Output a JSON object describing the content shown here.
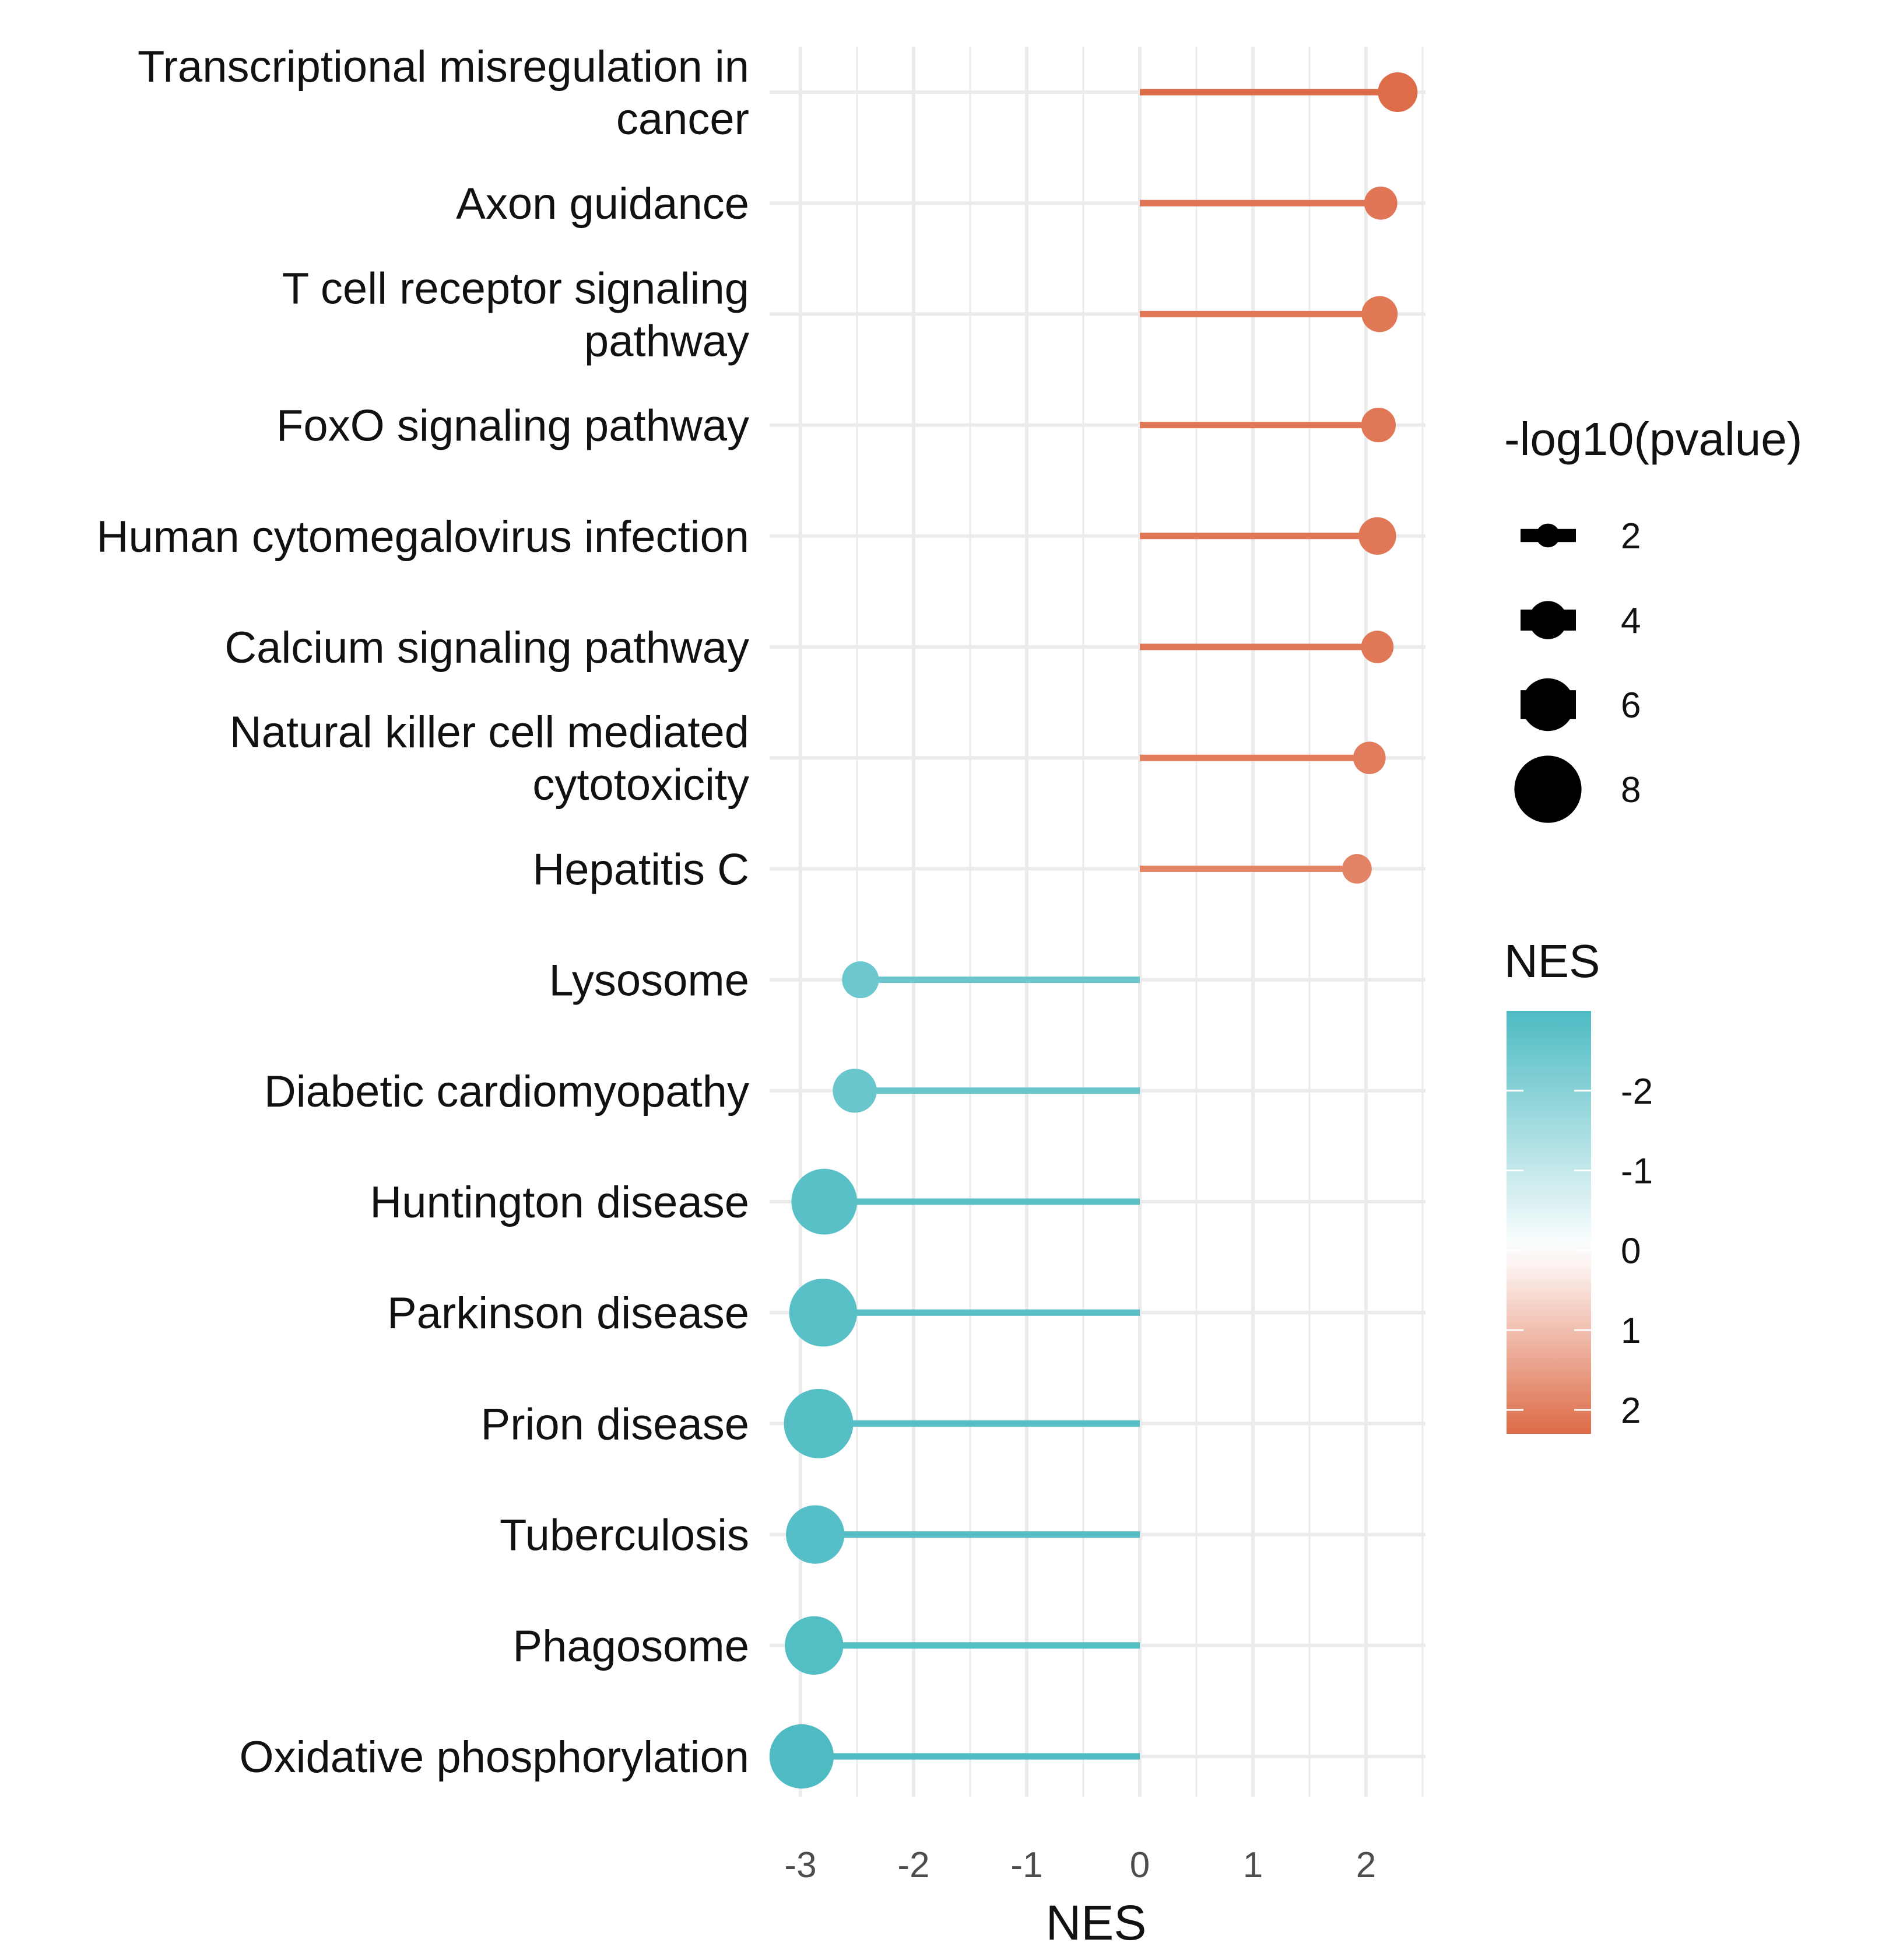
{
  "chart_data": {
    "type": "lollipop",
    "xlabel": "NES",
    "ylabel": "",
    "xlim": [
      -3.3,
      2.5
    ],
    "x_ticks": [
      "-3",
      "-2",
      "-1",
      "0",
      "1",
      "2"
    ],
    "grid": true,
    "categories": [
      [
        "Transcriptional misregulation in",
        "cancer"
      ],
      [
        "Axon guidance"
      ],
      [
        "T cell receptor signaling",
        "pathway"
      ],
      [
        "FoxO signaling pathway"
      ],
      [
        "Human cytomegalovirus infection"
      ],
      [
        "Calcium signaling pathway"
      ],
      [
        "Natural killer cell mediated",
        "cytotoxicity"
      ],
      [
        "Hepatitis C"
      ],
      [
        "Lysosome"
      ],
      [
        "Diabetic cardiomyopathy"
      ],
      [
        "Huntington disease"
      ],
      [
        "Parkinson disease"
      ],
      [
        "Prion disease"
      ],
      [
        "Tuberculosis"
      ],
      [
        "Phagosome"
      ],
      [
        "Oxidative phosphorylation"
      ]
    ],
    "nes": [
      2.28,
      2.13,
      2.12,
      2.11,
      2.1,
      2.1,
      2.03,
      1.92,
      -2.47,
      -2.52,
      -2.79,
      -2.8,
      -2.84,
      -2.87,
      -2.88,
      -2.99
    ],
    "neg_log10_pvalue": [
      4.2,
      3.3,
      3.7,
      3.5,
      3.9,
      3.2,
      3.2,
      2.8,
      3.8,
      4.8,
      7.8,
      8.1,
      8.3,
      6.8,
      6.8,
      7.6
    ],
    "size_legend": {
      "title": "-log10(pvalue)",
      "labels": [
        "2",
        "4",
        "6",
        "8"
      ],
      "values": [
        2,
        4,
        6,
        8
      ]
    },
    "color_legend": {
      "title": "NES",
      "labels": [
        "-2",
        "-1",
        "0",
        "1",
        "2"
      ],
      "values": [
        -2,
        -1,
        0,
        1,
        2
      ],
      "low_color": "#4DBBC3",
      "mid_color": "#FFFFFF",
      "high_color": "#DD6B47",
      "range": [
        -3.0,
        2.3
      ]
    },
    "legend_position": "right"
  }
}
